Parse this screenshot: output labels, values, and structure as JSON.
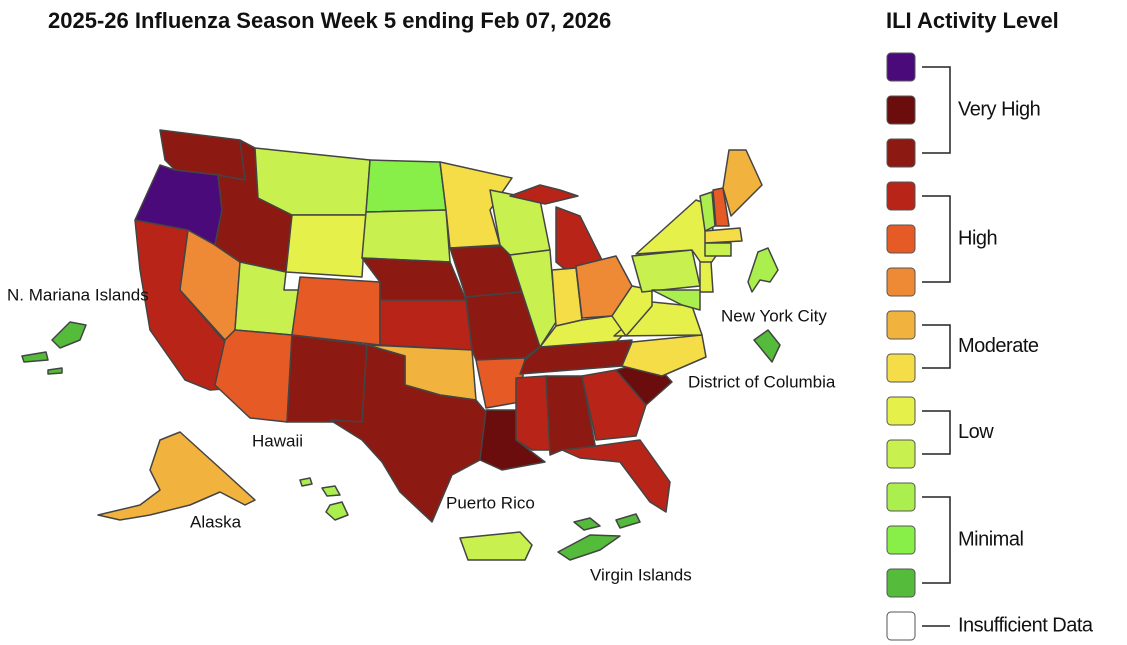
{
  "title": "2025-26 Influenza Season Week 5 ending Feb 07, 2026",
  "legend": {
    "title": "ILI Activity Level",
    "groups": [
      {
        "label": "Very High",
        "colors": [
          "#4b0a7a",
          "#6b0d0d",
          "#8c1a12"
        ]
      },
      {
        "label": "High",
        "colors": [
          "#b82418",
          "#e65a26",
          "#ee8a35"
        ]
      },
      {
        "label": "Moderate",
        "colors": [
          "#f2b23e",
          "#f5dd48"
        ]
      },
      {
        "label": "Low",
        "colors": [
          "#e6f04b",
          "#c8f04e"
        ]
      },
      {
        "label": "Minimal",
        "colors": [
          "#aaef4e",
          "#88ee48",
          "#55bb3a"
        ]
      },
      {
        "label": "Insufficient Data",
        "colors": [
          "#ffffff"
        ]
      }
    ]
  },
  "map": {
    "region_colors": [
      "#8c1a12",
      "#4b0a7a",
      "#b82418",
      "#ee8a35",
      "#8c1a12",
      "#c8f04e",
      "#e6f04b",
      "#c8f04e",
      "#e65a26",
      "#e65a26",
      "#8c1a12",
      "#88ee48",
      "#c8f04e",
      "#8c1a12",
      "#b82418",
      "#f2b23e",
      "#8c1a12",
      "#f5dd48",
      "#8c1a12",
      "#8c1a12",
      "#e65a26",
      "#6b0d0d",
      "#c8f04e",
      "#c8f04e",
      "#b82418",
      "#b82418",
      "#f5dd48",
      "#ee8a35",
      "#e6f04b",
      "#8c1a12",
      "#b82418",
      "#8c1a12",
      "#b82418",
      "#b82418",
      "#6b0d0d",
      "#f5dd48",
      "#e6f04b",
      "#e6f04b",
      "#c8f04e",
      "#e6f04b",
      "#aaef4e",
      "#e65a26",
      "#f2b23e",
      "#f5dd48",
      "#c8f04e",
      "#e6f04b",
      "#aaef4e",
      "#f2b23e",
      "#aaef4e",
      "#55bb3a",
      "#c8f04e",
      "#55bb3a",
      "#55bb3a",
      "#aaef4e"
    ],
    "labels": [
      "N. Mariana Islands",
      "Hawaii",
      "Alaska",
      "Puerto Rico",
      "Virgin Islands",
      "New York City",
      "District of Columbia"
    ]
  }
}
